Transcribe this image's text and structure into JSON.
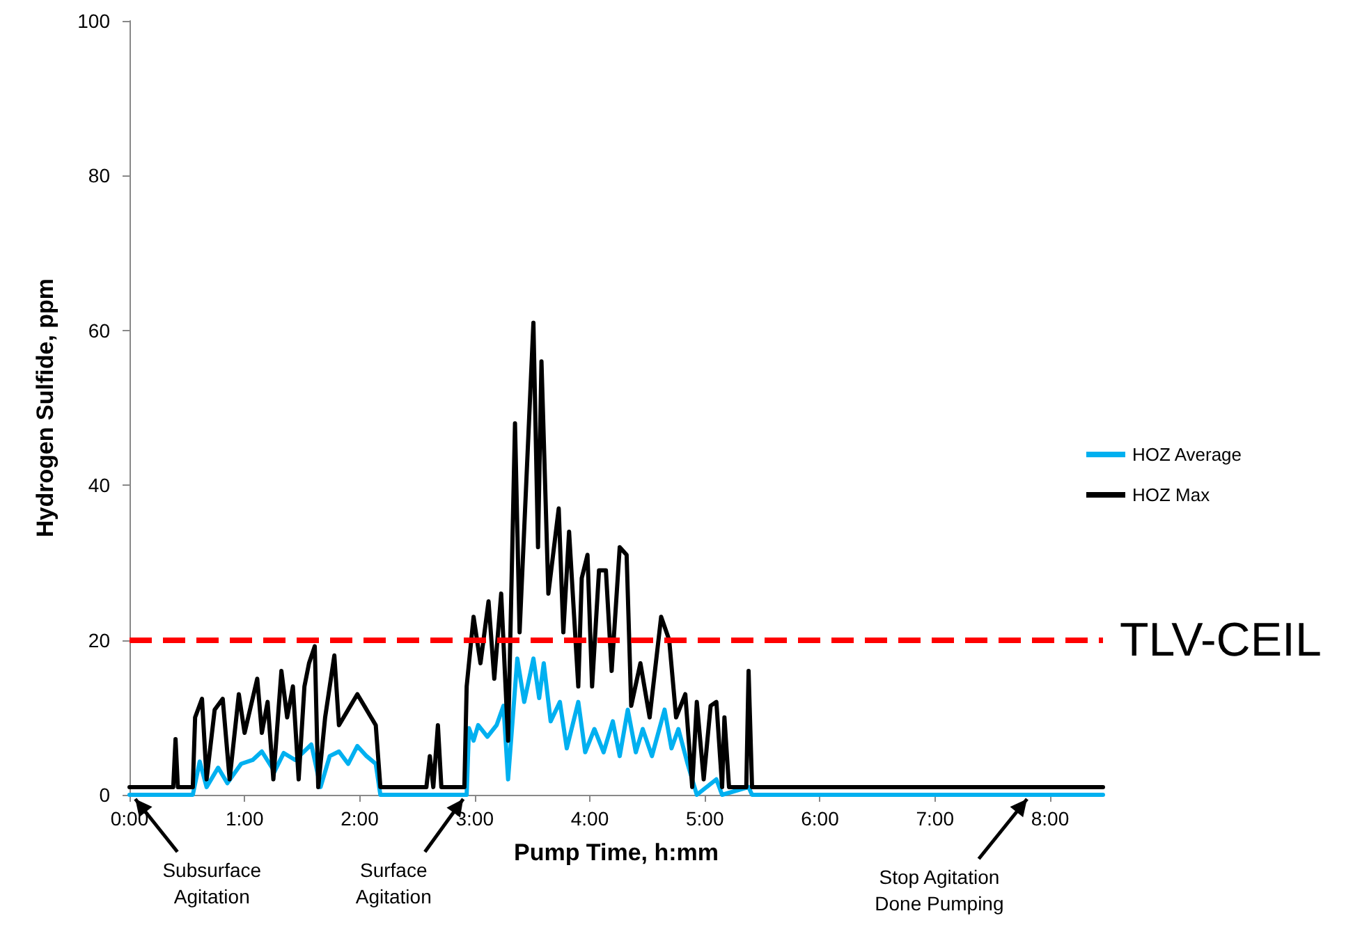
{
  "chart_data": {
    "type": "line",
    "xlabel": "Pump Time, h:mm",
    "ylabel": "Hydrogen Sulfide, ppm",
    "xlim": [
      0,
      8.46
    ],
    "xticks": [
      {
        "value": 0,
        "label": "0:00"
      },
      {
        "value": 1,
        "label": "1:00"
      },
      {
        "value": 2,
        "label": "2:00"
      },
      {
        "value": 3,
        "label": "3:00"
      },
      {
        "value": 4,
        "label": "4:00"
      },
      {
        "value": 5,
        "label": "5:00"
      },
      {
        "value": 6,
        "label": "6:00"
      },
      {
        "value": 7,
        "label": "7:00"
      },
      {
        "value": 8,
        "label": "8:00"
      }
    ],
    "ylim": [
      0,
      100
    ],
    "yticks": [
      0,
      20,
      40,
      60,
      80,
      100
    ],
    "grid": false,
    "legend": "right",
    "marker": "none",
    "line_style": "solid",
    "series": [
      {
        "name": "HOZ Average",
        "color": "#00b0f0",
        "x": [
          0,
          0.55,
          0.61,
          0.67,
          0.77,
          0.85,
          0.97,
          1.07,
          1.15,
          1.26,
          1.34,
          1.44,
          1.58,
          1.66,
          1.74,
          1.82,
          1.9,
          1.98,
          2.06,
          2.14,
          2.18,
          2.93,
          2.95,
          2.99,
          3.03,
          3.11,
          3.19,
          3.25,
          3.29,
          3.37,
          3.43,
          3.51,
          3.56,
          3.6,
          3.66,
          3.74,
          3.8,
          3.9,
          3.96,
          4.04,
          4.12,
          4.2,
          4.26,
          4.33,
          4.4,
          4.46,
          4.54,
          4.65,
          4.71,
          4.77,
          4.85,
          4.93,
          5.1,
          5.15,
          5.38,
          5.41,
          8.46
        ],
        "values": [
          0,
          0,
          4.3,
          1,
          3.5,
          1.5,
          4,
          4.5,
          5.6,
          3,
          5.4,
          4.5,
          6.5,
          1,
          5,
          5.6,
          4,
          6.3,
          5,
          4,
          0,
          0,
          8.6,
          7,
          9,
          7.5,
          9,
          11.5,
          2,
          17.6,
          12,
          17.6,
          12.5,
          17,
          9.5,
          12,
          6,
          12,
          5.5,
          8.5,
          5.5,
          9.5,
          5,
          11,
          5.5,
          8.5,
          5,
          11,
          6,
          8.5,
          4,
          0,
          2,
          0,
          1,
          0,
          0
        ]
      },
      {
        "name": "HOZ Max",
        "color": "#000000",
        "x": [
          0,
          0.38,
          0.4,
          0.42,
          0.55,
          0.57,
          0.63,
          0.67,
          0.74,
          0.81,
          0.87,
          0.95,
          1.0,
          1.11,
          1.15,
          1.2,
          1.25,
          1.32,
          1.37,
          1.42,
          1.47,
          1.52,
          1.56,
          1.61,
          1.64,
          1.7,
          1.78,
          1.82,
          1.9,
          1.98,
          2.06,
          2.14,
          2.18,
          2.58,
          2.61,
          2.64,
          2.68,
          2.71,
          2.91,
          2.93,
          2.99,
          3.05,
          3.12,
          3.17,
          3.23,
          3.29,
          3.35,
          3.39,
          3.45,
          3.51,
          3.55,
          3.58,
          3.64,
          3.73,
          3.77,
          3.82,
          3.9,
          3.93,
          3.98,
          4.02,
          4.08,
          4.14,
          4.19,
          4.26,
          4.32,
          4.36,
          4.44,
          4.52,
          4.62,
          4.69,
          4.75,
          4.83,
          4.89,
          4.93,
          4.99,
          5.05,
          5.1,
          5.15,
          5.17,
          5.21,
          5.36,
          5.38,
          5.41,
          8.46
        ],
        "values": [
          1,
          1,
          7.2,
          1,
          1,
          10,
          12.4,
          2,
          11,
          12.4,
          2,
          13,
          8,
          15,
          8,
          12,
          2,
          16,
          10,
          14,
          2,
          14,
          17,
          19.2,
          1,
          10,
          18,
          9,
          11,
          13,
          11,
          9,
          1,
          1,
          5,
          1,
          9,
          1,
          1,
          14,
          23,
          17,
          25,
          15,
          26,
          7,
          48,
          21,
          41,
          61,
          32,
          56,
          26,
          37,
          21,
          34,
          14,
          28,
          31,
          14,
          29,
          29,
          16,
          32,
          31,
          11.5,
          17,
          10,
          23,
          20,
          10,
          13,
          1,
          12,
          2,
          11.5,
          12,
          1,
          10,
          1,
          1,
          16,
          1,
          1
        ]
      }
    ],
    "ref_lines": [
      {
        "axis": "y",
        "value": 20,
        "label": "TLV-CEIL",
        "color": "#ff0000",
        "line_style": "dashed"
      }
    ],
    "annotations": [
      {
        "text": "Subsurface\nAgitation",
        "x": 0.05,
        "y": 0
      },
      {
        "text": "Surface\nAgitation",
        "x": 2.9,
        "y": 0
      },
      {
        "text": "Stop Agitation\nDone Pumping",
        "x": 7.8,
        "y": 0
      }
    ]
  }
}
